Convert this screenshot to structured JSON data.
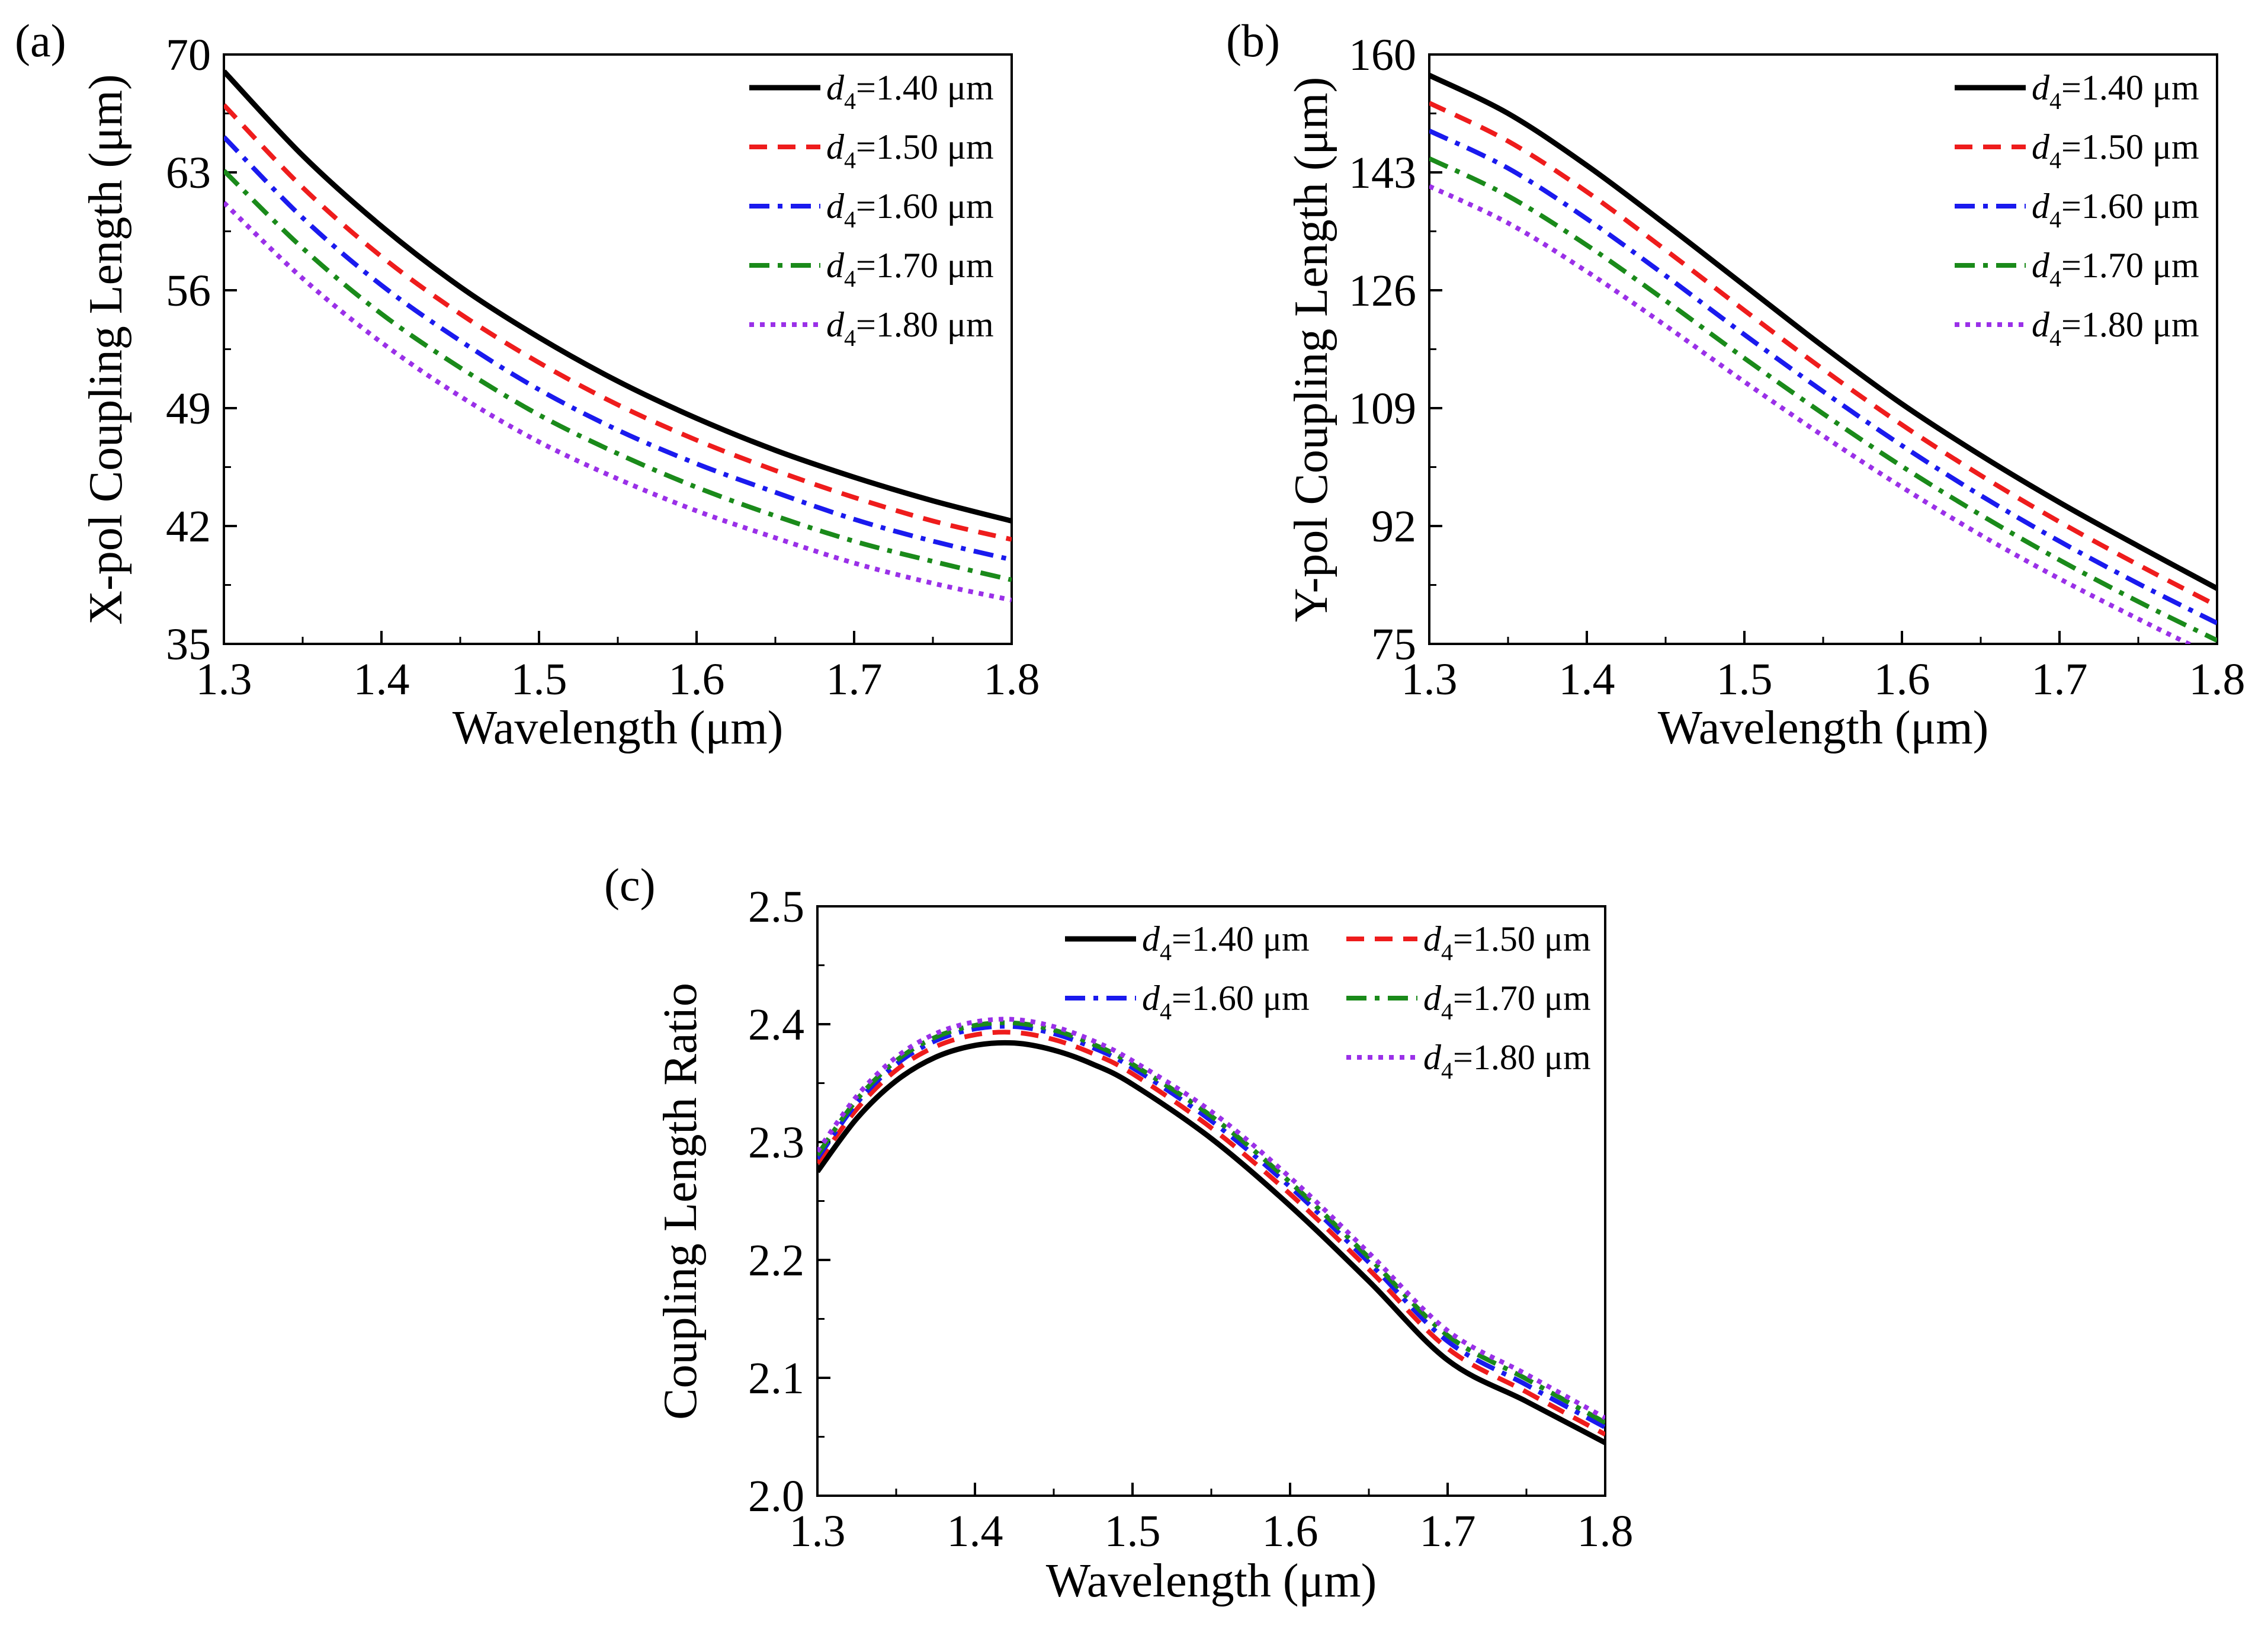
{
  "figure": {
    "panel_labels": [
      "(a)",
      "(b)",
      "(c)"
    ]
  },
  "chart_data": [
    {
      "type": "line",
      "panel": "(a)",
      "xlabel": "Wavelength (μm)",
      "ylabel": "X-pol Coupling Length (μm)",
      "xlim": [
        1.3,
        1.8
      ],
      "ylim": [
        35,
        70
      ],
      "xticks": [
        "1.3",
        "1.4",
        "1.5",
        "1.6",
        "1.7",
        "1.8"
      ],
      "yticks": [
        "35",
        "42",
        "49",
        "56",
        "63",
        "70"
      ],
      "grid": false,
      "legend_position": "top-right",
      "x": [
        1.3,
        1.35,
        1.4,
        1.45,
        1.5,
        1.55,
        1.6,
        1.65,
        1.7,
        1.75,
        1.8
      ],
      "series": [
        {
          "label_var": "d",
          "label_sub": "4",
          "label_rest": "=1.40 μm",
          "color": "#000000",
          "dash": "solid",
          "values": [
            69.0,
            64.0,
            59.8,
            56.2,
            53.2,
            50.6,
            48.4,
            46.5,
            44.9,
            43.5,
            42.3
          ]
        },
        {
          "label_var": "d",
          "label_sub": "4",
          "label_rest": "=1.50 μm",
          "color": "#ee1c1c",
          "dash": "dash",
          "values": [
            67.0,
            62.1,
            58.0,
            54.6,
            51.7,
            49.2,
            47.1,
            45.3,
            43.7,
            42.3,
            41.2
          ]
        },
        {
          "label_var": "d",
          "label_sub": "4",
          "label_rest": "=1.60 μm",
          "color": "#1a1aee",
          "dash": "dashdot",
          "values": [
            65.1,
            60.3,
            56.3,
            53.0,
            50.1,
            47.7,
            45.7,
            44.0,
            42.4,
            41.1,
            40.0
          ]
        },
        {
          "label_var": "d",
          "label_sub": "4",
          "label_rest": "=1.70 μm",
          "color": "#1a8a1a",
          "dash": "dashdot",
          "values": [
            63.1,
            58.5,
            54.6,
            51.4,
            48.6,
            46.3,
            44.3,
            42.6,
            41.1,
            39.9,
            38.8
          ]
        },
        {
          "label_var": "d",
          "label_sub": "4",
          "label_rest": "=1.80 μm",
          "color": "#9a30e8",
          "dash": "dot",
          "values": [
            61.2,
            56.7,
            52.9,
            49.7,
            47.0,
            44.8,
            42.9,
            41.3,
            39.8,
            38.6,
            37.6
          ]
        }
      ]
    },
    {
      "type": "line",
      "panel": "(b)",
      "xlabel": "Wavelength (μm)",
      "ylabel": "Y-pol Coupling Length (μm)",
      "xlim": [
        1.3,
        1.8
      ],
      "ylim": [
        75,
        160
      ],
      "xticks": [
        "1.3",
        "1.4",
        "1.5",
        "1.6",
        "1.7",
        "1.8"
      ],
      "yticks": [
        "75",
        "92",
        "109",
        "126",
        "143",
        "160"
      ],
      "grid": false,
      "legend_position": "top-right",
      "x": [
        1.3,
        1.35,
        1.4,
        1.45,
        1.5,
        1.55,
        1.6,
        1.65,
        1.7,
        1.75,
        1.8
      ],
      "series": [
        {
          "label_var": "d",
          "label_sub": "4",
          "label_rest": "=1.40 μm",
          "color": "#000000",
          "dash": "solid",
          "values": [
            157.0,
            151.5,
            144.0,
            135.5,
            126.7,
            117.9,
            109.6,
            102.2,
            95.4,
            89.1,
            83.0
          ]
        },
        {
          "label_var": "d",
          "label_sub": "4",
          "label_rest": "=1.50 μm",
          "color": "#ee1c1c",
          "dash": "dash",
          "values": [
            153.0,
            147.5,
            140.2,
            131.8,
            123.1,
            114.6,
            106.6,
            99.3,
            92.6,
            86.4,
            80.5
          ]
        },
        {
          "label_var": "d",
          "label_sub": "4",
          "label_rest": "=1.60 μm",
          "color": "#1a1aee",
          "dash": "dashdot",
          "values": [
            149.0,
            143.6,
            136.3,
            128.1,
            119.6,
            111.4,
            103.6,
            96.4,
            89.8,
            83.7,
            78.0
          ]
        },
        {
          "label_var": "d",
          "label_sub": "4",
          "label_rest": "=1.70 μm",
          "color": "#1a8a1a",
          "dash": "dashdot",
          "values": [
            145.0,
            139.6,
            132.5,
            124.5,
            116.2,
            108.2,
            100.6,
            93.6,
            87.1,
            81.1,
            75.5
          ]
        },
        {
          "label_var": "d",
          "label_sub": "4",
          "label_rest": "=1.80 μm",
          "color": "#9a30e8",
          "dash": "dot",
          "values": [
            141.0,
            135.7,
            128.7,
            120.9,
            112.8,
            105.0,
            97.6,
            90.7,
            84.4,
            78.6,
            73.0
          ]
        }
      ]
    },
    {
      "type": "line",
      "panel": "(c)",
      "xlabel": "Wavelength (μm)",
      "ylabel": "Coupling Length Ratio",
      "xlim": [
        1.3,
        1.8
      ],
      "ylim": [
        2.0,
        2.5
      ],
      "xticks": [
        "1.3",
        "1.4",
        "1.5",
        "1.6",
        "1.7",
        "1.8"
      ],
      "yticks": [
        "2.0",
        "2.1",
        "2.2",
        "2.3",
        "2.4",
        "2.5"
      ],
      "grid": false,
      "legend_position": "top-right",
      "x": [
        1.3,
        1.325,
        1.35,
        1.375,
        1.4,
        1.425,
        1.45,
        1.475,
        1.5,
        1.55,
        1.6,
        1.65,
        1.7,
        1.75,
        1.8
      ],
      "series": [
        {
          "label_var": "d",
          "label_sub": "4",
          "label_rest": "=1.40 μm",
          "color": "#000000",
          "dash": "solid",
          "values": [
            2.275,
            2.32,
            2.352,
            2.372,
            2.382,
            2.384,
            2.378,
            2.366,
            2.349,
            2.303,
            2.246,
            2.182,
            2.115,
            2.08,
            2.045
          ]
        },
        {
          "label_var": "d",
          "label_sub": "4",
          "label_rest": "=1.50 μm",
          "color": "#ee1c1c",
          "dash": "dash",
          "values": [
            2.282,
            2.328,
            2.361,
            2.381,
            2.391,
            2.393,
            2.387,
            2.375,
            2.358,
            2.312,
            2.256,
            2.192,
            2.125,
            2.088,
            2.052
          ]
        },
        {
          "label_var": "d",
          "label_sub": "4",
          "label_rest": "=1.60 μm",
          "color": "#1a1aee",
          "dash": "dashdot",
          "values": [
            2.286,
            2.333,
            2.366,
            2.386,
            2.396,
            2.398,
            2.392,
            2.38,
            2.363,
            2.318,
            2.262,
            2.198,
            2.131,
            2.094,
            2.058
          ]
        },
        {
          "label_var": "d",
          "label_sub": "4",
          "label_rest": "=1.70 μm",
          "color": "#1a8a1a",
          "dash": "dashdot",
          "values": [
            2.289,
            2.336,
            2.369,
            2.389,
            2.399,
            2.401,
            2.395,
            2.383,
            2.366,
            2.322,
            2.266,
            2.202,
            2.136,
            2.099,
            2.062
          ]
        },
        {
          "label_var": "d",
          "label_sub": "4",
          "label_rest": "=1.80 μm",
          "color": "#9a30e8",
          "dash": "dot",
          "values": [
            2.292,
            2.339,
            2.372,
            2.392,
            2.402,
            2.404,
            2.398,
            2.386,
            2.369,
            2.326,
            2.27,
            2.206,
            2.14,
            2.103,
            2.066
          ]
        }
      ]
    }
  ]
}
